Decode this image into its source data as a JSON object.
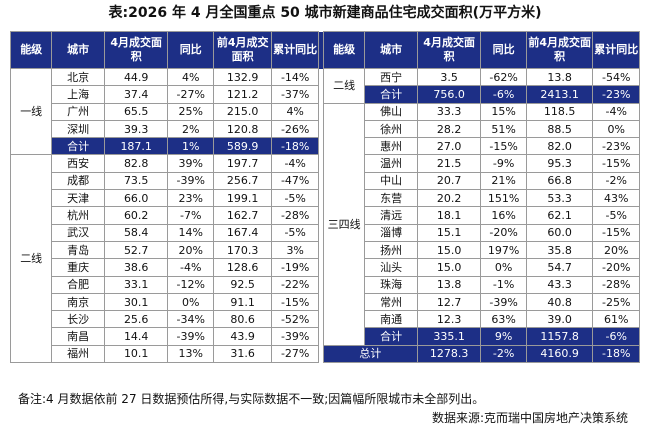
{
  "title": "表:2026 年 4 月全国重点 50 城市新建商品住宅成交面积(万平方米)",
  "headers": {
    "tier": "能级",
    "city": "城市",
    "april_area": "4月成交面积",
    "yoy": "同比",
    "first4_area": "前4月成交面积",
    "cum_yoy": "累计同比"
  },
  "left": {
    "tier1": {
      "label": "一线",
      "rows": [
        {
          "city": "北京",
          "april": "44.9",
          "yoy": "4%",
          "first4": "132.9",
          "cum": "-14%"
        },
        {
          "city": "上海",
          "april": "37.4",
          "yoy": "-27%",
          "first4": "121.2",
          "cum": "-37%"
        },
        {
          "city": "广州",
          "april": "65.5",
          "yoy": "25%",
          "first4": "215.0",
          "cum": "4%"
        },
        {
          "city": "深圳",
          "april": "39.3",
          "yoy": "2%",
          "first4": "120.8",
          "cum": "-26%"
        }
      ],
      "subtotal": {
        "city": "合计",
        "april": "187.1",
        "yoy": "1%",
        "first4": "589.9",
        "cum": "-18%"
      }
    },
    "tier2": {
      "label": "二线",
      "rows": [
        {
          "city": "西安",
          "april": "82.8",
          "yoy": "39%",
          "first4": "197.7",
          "cum": "-4%"
        },
        {
          "city": "成都",
          "april": "73.5",
          "yoy": "-39%",
          "first4": "256.7",
          "cum": "-47%"
        },
        {
          "city": "天津",
          "april": "66.0",
          "yoy": "23%",
          "first4": "199.1",
          "cum": "-5%"
        },
        {
          "city": "杭州",
          "april": "60.2",
          "yoy": "-7%",
          "first4": "162.7",
          "cum": "-28%"
        },
        {
          "city": "武汉",
          "april": "58.4",
          "yoy": "14%",
          "first4": "167.4",
          "cum": "-5%"
        },
        {
          "city": "青岛",
          "april": "52.7",
          "yoy": "20%",
          "first4": "170.3",
          "cum": "3%"
        },
        {
          "city": "重庆",
          "april": "38.6",
          "yoy": "-4%",
          "first4": "128.6",
          "cum": "-19%"
        },
        {
          "city": "合肥",
          "april": "33.1",
          "yoy": "-12%",
          "first4": "92.5",
          "cum": "-22%"
        },
        {
          "city": "南京",
          "april": "30.1",
          "yoy": "0%",
          "first4": "91.1",
          "cum": "-15%"
        },
        {
          "city": "长沙",
          "april": "25.6",
          "yoy": "-34%",
          "first4": "80.6",
          "cum": "-52%"
        },
        {
          "city": "南昌",
          "april": "14.4",
          "yoy": "-39%",
          "first4": "43.9",
          "cum": "-39%"
        },
        {
          "city": "福州",
          "april": "10.1",
          "yoy": "13%",
          "first4": "31.6",
          "cum": "-27%"
        }
      ]
    }
  },
  "right": {
    "tier2_cont": {
      "label": "二线",
      "rows": [
        {
          "city": "西宁",
          "april": "3.5",
          "yoy": "-62%",
          "first4": "13.8",
          "cum": "-54%"
        }
      ],
      "subtotal": {
        "city": "合计",
        "april": "756.0",
        "yoy": "-6%",
        "first4": "2413.1",
        "cum": "-23%"
      }
    },
    "tier34": {
      "label": "三四线",
      "rows": [
        {
          "city": "佛山",
          "april": "33.3",
          "yoy": "15%",
          "first4": "118.5",
          "cum": "-4%"
        },
        {
          "city": "徐州",
          "april": "28.2",
          "yoy": "51%",
          "first4": "88.5",
          "cum": "0%"
        },
        {
          "city": "惠州",
          "april": "27.0",
          "yoy": "-15%",
          "first4": "82.0",
          "cum": "-23%"
        },
        {
          "city": "温州",
          "april": "21.5",
          "yoy": "-9%",
          "first4": "95.3",
          "cum": "-15%"
        },
        {
          "city": "中山",
          "april": "20.7",
          "yoy": "21%",
          "first4": "66.8",
          "cum": "-2%"
        },
        {
          "city": "东营",
          "april": "20.2",
          "yoy": "151%",
          "first4": "53.3",
          "cum": "43%"
        },
        {
          "city": "清远",
          "april": "18.1",
          "yoy": "16%",
          "first4": "62.1",
          "cum": "-5%"
        },
        {
          "city": "淄博",
          "april": "15.1",
          "yoy": "-20%",
          "first4": "60.0",
          "cum": "-15%"
        },
        {
          "city": "扬州",
          "april": "15.0",
          "yoy": "197%",
          "first4": "35.8",
          "cum": "20%"
        },
        {
          "city": "汕头",
          "april": "15.0",
          "yoy": "0%",
          "first4": "54.7",
          "cum": "-20%"
        },
        {
          "city": "珠海",
          "april": "13.8",
          "yoy": "-1%",
          "first4": "43.3",
          "cum": "-28%"
        },
        {
          "city": "常州",
          "april": "12.7",
          "yoy": "-39%",
          "first4": "40.8",
          "cum": "-25%"
        },
        {
          "city": "南通",
          "april": "12.3",
          "yoy": "63%",
          "first4": "39.0",
          "cum": "61%"
        }
      ],
      "subtotal": {
        "city": "合计",
        "april": "335.1",
        "yoy": "9%",
        "first4": "1157.8",
        "cum": "-6%"
      }
    },
    "grand_total": {
      "label": "总计",
      "april": "1278.3",
      "yoy": "-2%",
      "first4": "4160.9",
      "cum": "-18%"
    }
  },
  "footer": {
    "note": "备注:4 月数据依前 27 日数据预估所得,与实际数据不一致;因篇幅所限城市未全部列出。",
    "source": "数据来源:克而瑞中国房地产决策系统"
  }
}
